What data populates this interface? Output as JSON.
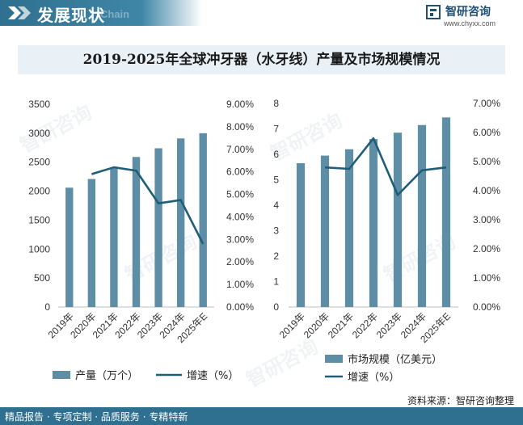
{
  "header": {
    "title": "发展现状",
    "subtitle": "Chain"
  },
  "brand": {
    "name": "智研咨询",
    "url": "www.chyxx.com"
  },
  "chart_title": "2019-2025年全球冲牙器（水牙线）产量及市场规模情况",
  "watermark_text": "智研咨询",
  "colors": {
    "bar": "#5e8ea6",
    "line": "#1f5d78",
    "header": "#2f6f8f",
    "title_band": "#e9f1f7"
  },
  "chart_data": [
    {
      "type": "bar",
      "categories": [
        "2019年",
        "2020年",
        "2021年",
        "2022年",
        "2023年",
        "2024年",
        "2025年E"
      ],
      "series": [
        {
          "name": "产量（万个）",
          "type": "bar",
          "axis": "left",
          "values": [
            2060,
            2210,
            2390,
            2590,
            2740,
            2910,
            3000
          ]
        },
        {
          "name": "增速（%）",
          "type": "line",
          "axis": "right",
          "values": [
            null,
            5.9,
            6.2,
            6.05,
            4.6,
            4.75,
            2.8
          ]
        }
      ],
      "y_left": {
        "min": 0,
        "max": 3500,
        "step": 500,
        "ticks": [
          "0",
          "500",
          "1000",
          "1500",
          "2000",
          "2500",
          "3000",
          "3500"
        ]
      },
      "y_right": {
        "min": 0,
        "max": 9,
        "step": 1,
        "ticks": [
          "0.00%",
          "1.00%",
          "2.00%",
          "3.00%",
          "4.00%",
          "5.00%",
          "6.00%",
          "7.00%",
          "8.00%",
          "9.00%"
        ]
      },
      "legend": "bottom",
      "grid": false
    },
    {
      "type": "bar",
      "categories": [
        "2019年",
        "2020年",
        "2021年",
        "2022年",
        "2023年",
        "2024年",
        "2025年E"
      ],
      "series": [
        {
          "name": "市场规模（亿美元）",
          "type": "bar",
          "axis": "left",
          "values": [
            5.65,
            5.95,
            6.2,
            6.6,
            6.85,
            7.15,
            7.45
          ]
        },
        {
          "name": "增速（%）",
          "type": "line",
          "axis": "right",
          "values": [
            null,
            4.8,
            4.75,
            5.8,
            3.85,
            4.7,
            4.8
          ]
        }
      ],
      "y_left": {
        "min": 0,
        "max": 8,
        "step": 1,
        "ticks": [
          "0",
          "1",
          "2",
          "3",
          "4",
          "5",
          "6",
          "7",
          "8"
        ]
      },
      "y_right": {
        "min": 0,
        "max": 7,
        "step": 1,
        "ticks": [
          "0.00%",
          "1.00%",
          "2.00%",
          "3.00%",
          "4.00%",
          "5.00%",
          "6.00%",
          "7.00%"
        ]
      },
      "legend": "bottom",
      "grid": false
    }
  ],
  "footer": {
    "slogan": "精品报告 · 专项定制 · 品质服务 · 专精特新",
    "source": "资料来源：智研咨询整理"
  }
}
